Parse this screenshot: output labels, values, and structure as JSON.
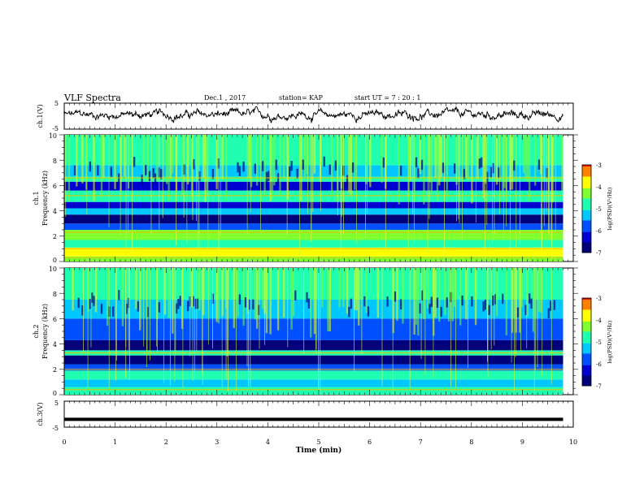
{
  "header": {
    "title": "VLF Spectra",
    "date": "Dec.1 , 2017",
    "station": "station= KAP",
    "start": "start  UT =   7 : 20 : 1"
  },
  "chart_data": [
    {
      "type": "line",
      "name": "ch1-waveform",
      "ylabel": "ch.1(V)",
      "ylim": [
        -5,
        5
      ],
      "yticks": [
        "5",
        "-5"
      ],
      "xlim": [
        0,
        10
      ],
      "x_range_data": [
        0,
        9.8
      ]
    },
    {
      "type": "heatmap",
      "name": "ch1-spectrogram",
      "ylabel_top": "ch.1",
      "ylabel": "Frequency  (kHz)",
      "ylim": [
        0,
        10
      ],
      "yticks": [
        "0",
        "2",
        "4",
        "6",
        "8",
        "10"
      ],
      "xlim": [
        0,
        10
      ],
      "x_range_data": [
        0,
        9.8
      ],
      "bands": [
        {
          "from": 0.0,
          "to": 0.4,
          "level": -4.3
        },
        {
          "from": 0.4,
          "to": 1.1,
          "level": -4.0
        },
        {
          "from": 1.1,
          "to": 1.7,
          "level": -5.0
        },
        {
          "from": 1.7,
          "to": 2.5,
          "level": -4.2
        },
        {
          "from": 2.5,
          "to": 3.0,
          "level": -5.6
        },
        {
          "from": 3.0,
          "to": 3.7,
          "level": -6.8
        },
        {
          "from": 3.7,
          "to": 4.2,
          "level": -5.4
        },
        {
          "from": 4.2,
          "to": 4.7,
          "level": -6.3
        },
        {
          "from": 4.7,
          "to": 5.6,
          "level": -4.6
        },
        {
          "from": 5.6,
          "to": 6.3,
          "level": -6.1
        },
        {
          "from": 6.3,
          "to": 6.7,
          "level": -4.7
        },
        {
          "from": 6.7,
          "to": 7.6,
          "level": -5.3
        },
        {
          "from": 7.6,
          "to": 10.0,
          "level": -4.8
        }
      ],
      "lines": [
        0.3,
        1.0,
        2.3,
        5.2,
        6.6
      ],
      "colorbar": {
        "label": "log(PSD)(V²/Hz)",
        "ticks": [
          "-3",
          "-4",
          "-5",
          "-6",
          "-7"
        ],
        "range": [
          -7,
          -3
        ]
      }
    },
    {
      "type": "heatmap",
      "name": "ch2-spectrogram",
      "ylabel_top": "ch.2",
      "ylabel": "Frequency  (kHz)",
      "ylim": [
        0,
        10
      ],
      "yticks": [
        "0",
        "2",
        "4",
        "6",
        "8",
        "10"
      ],
      "xlim": [
        0,
        10
      ],
      "x_range_data": [
        0,
        9.8
      ],
      "bands": [
        {
          "from": 0.0,
          "to": 0.6,
          "level": -4.8
        },
        {
          "from": 0.6,
          "to": 1.2,
          "level": -5.2
        },
        {
          "from": 1.2,
          "to": 1.9,
          "level": -4.9
        },
        {
          "from": 1.9,
          "to": 2.4,
          "level": -5.6
        },
        {
          "from": 2.4,
          "to": 3.1,
          "level": -6.8
        },
        {
          "from": 3.1,
          "to": 3.5,
          "level": -4.6
        },
        {
          "from": 3.5,
          "to": 4.3,
          "level": -6.6
        },
        {
          "from": 4.3,
          "to": 5.0,
          "level": -5.6
        },
        {
          "from": 5.0,
          "to": 6.0,
          "level": -5.8
        },
        {
          "from": 6.0,
          "to": 7.5,
          "level": -5.4
        },
        {
          "from": 7.5,
          "to": 10.0,
          "level": -4.6
        }
      ],
      "lines": [
        0.4,
        2.0,
        3.3
      ],
      "colorbar": {
        "label": "log(PSD)(V²/Hz)",
        "ticks": [
          "-3",
          "-4",
          "-5",
          "-6",
          "-7"
        ],
        "range": [
          -7,
          -3
        ]
      }
    },
    {
      "type": "line",
      "name": "ch3-waveform",
      "ylabel": "ch.3(V)",
      "ylim": [
        -5,
        5
      ],
      "yticks": [
        "5",
        "-5"
      ],
      "xlim": [
        0,
        10
      ],
      "x_range_data": [
        0,
        9.8
      ],
      "constant_value": -2.0
    }
  ],
  "xaxis": {
    "label": "Time  (min)",
    "ticks": [
      "0",
      "1",
      "2",
      "3",
      "4",
      "5",
      "6",
      "7",
      "8",
      "9",
      "10"
    ]
  },
  "colors": {
    "scale": [
      "#00007a",
      "#0000d0",
      "#0050ff",
      "#00c8ff",
      "#20ffb0",
      "#80ff30",
      "#ffff00",
      "#ff8000",
      "#e00000",
      "#ffffff"
    ]
  }
}
